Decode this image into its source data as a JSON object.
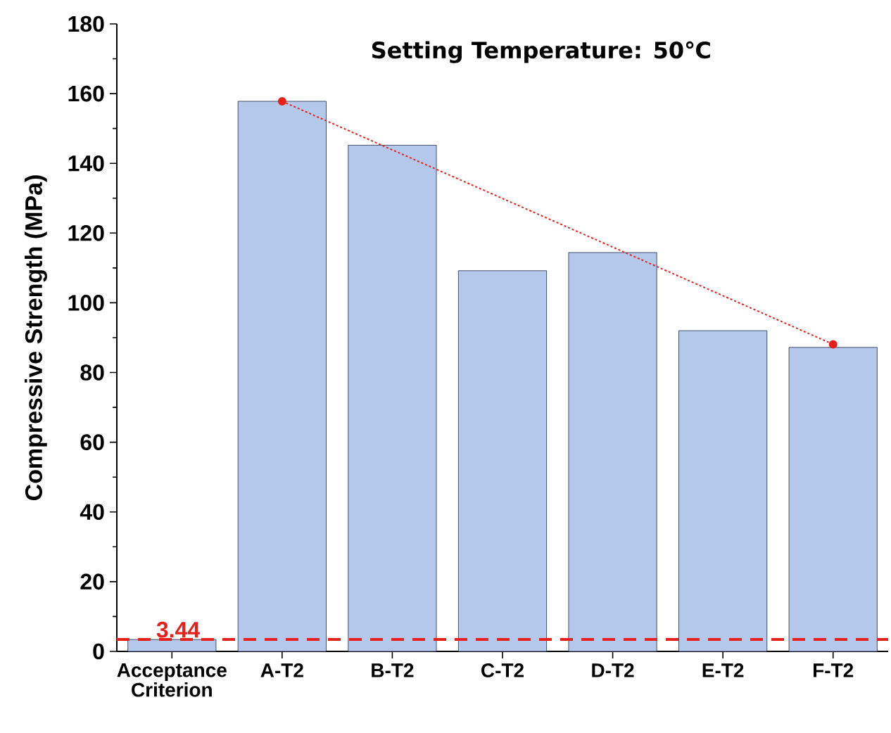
{
  "chart_data": {
    "type": "bar",
    "title": "Setting Temperature: 50℃",
    "ylabel": "Compressive Strength (MPa)",
    "categories": [
      "Acceptance Criterion",
      "A-T2",
      "B-T2",
      "C-T2",
      "D-T2",
      "E-T2",
      "F-T2"
    ],
    "series": [
      {
        "color": "#b4c8ec",
        "values": [
          3.4,
          157.8,
          145.2,
          109.2,
          114.4,
          92.0,
          87.2
        ]
      },
      {
        "type": "line",
        "color": "#e8201c",
        "x": [
          "A-T2",
          "F-T2"
        ],
        "values": [
          157.8,
          88.1
        ],
        "marker": "circle",
        "line_style": "dotted"
      }
    ],
    "ylim": [
      0,
      180
    ],
    "yticks": [
      0,
      20,
      40,
      60,
      80,
      100,
      120,
      140,
      160,
      180
    ],
    "ref_lines": [
      {
        "axis": "y",
        "value": 3.44,
        "label": "3.44",
        "color": "#e8201c",
        "line_style": "dashed"
      }
    ],
    "grid": false
  }
}
